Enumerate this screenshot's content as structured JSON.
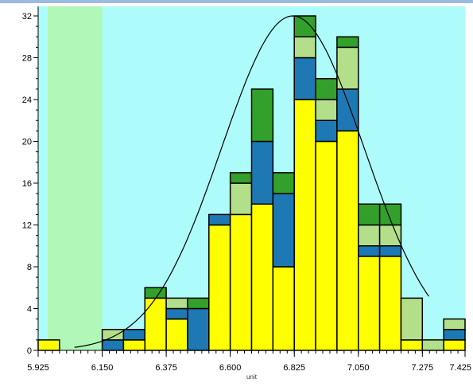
{
  "colors": {
    "top_band": "#9bbbe0",
    "plot_background": "#aefbfb",
    "shaded_region": "#b0f7b8",
    "yellow": "#ffff00",
    "blue": "#1e78b4",
    "light_green": "#b3df8a",
    "dark_green": "#33a02c",
    "curve": "#000000"
  },
  "chart_data": {
    "type": "bar",
    "stacked": true,
    "title": "",
    "xlabel": "unit",
    "ylabel": "",
    "xlim": [
      5.925,
      7.425
    ],
    "ylim": [
      0,
      32
    ],
    "x_ticks": [
      "5.925",
      "6.150",
      "6.375",
      "6.600",
      "6.825",
      "7.050",
      "7.275",
      "7.425"
    ],
    "y_ticks": [
      "0",
      "4",
      "8",
      "12",
      "16",
      "20",
      "24",
      "28",
      "32"
    ],
    "shaded_x_range": [
      5.925,
      6.15
    ],
    "grid": false,
    "bin_width": 0.075,
    "bin_starts": [
      5.925,
      6.0,
      6.075,
      6.15,
      6.225,
      6.3,
      6.375,
      6.45,
      6.525,
      6.6,
      6.675,
      6.75,
      6.825,
      6.9,
      6.975,
      7.05,
      7.125,
      7.2,
      7.275,
      7.35
    ],
    "series": [
      {
        "color_key": "yellow",
        "values": [
          1,
          0,
          0,
          0,
          1,
          5,
          3,
          0,
          12,
          13,
          14,
          8,
          24,
          20,
          21,
          9,
          9,
          1,
          0,
          1
        ]
      },
      {
        "color_key": "blue",
        "values": [
          0,
          0,
          0,
          1,
          1,
          0,
          1,
          4,
          1,
          0,
          6,
          7,
          4,
          2,
          4,
          1,
          1,
          0,
          0,
          1
        ]
      },
      {
        "color_key": "light_green",
        "values": [
          0,
          0,
          0,
          1,
          0,
          0,
          1,
          0,
          0,
          3,
          0,
          0,
          2,
          2,
          4,
          2,
          2,
          4,
          1,
          1
        ]
      },
      {
        "color_key": "dark_green",
        "values": [
          0,
          0,
          0,
          0,
          0,
          1,
          0,
          1,
          0,
          1,
          5,
          2,
          2,
          2,
          1,
          2,
          2,
          0,
          0,
          0
        ]
      }
    ],
    "curve": {
      "type": "normal",
      "mean": 6.82,
      "sd": 0.25,
      "peak": 32
    }
  }
}
